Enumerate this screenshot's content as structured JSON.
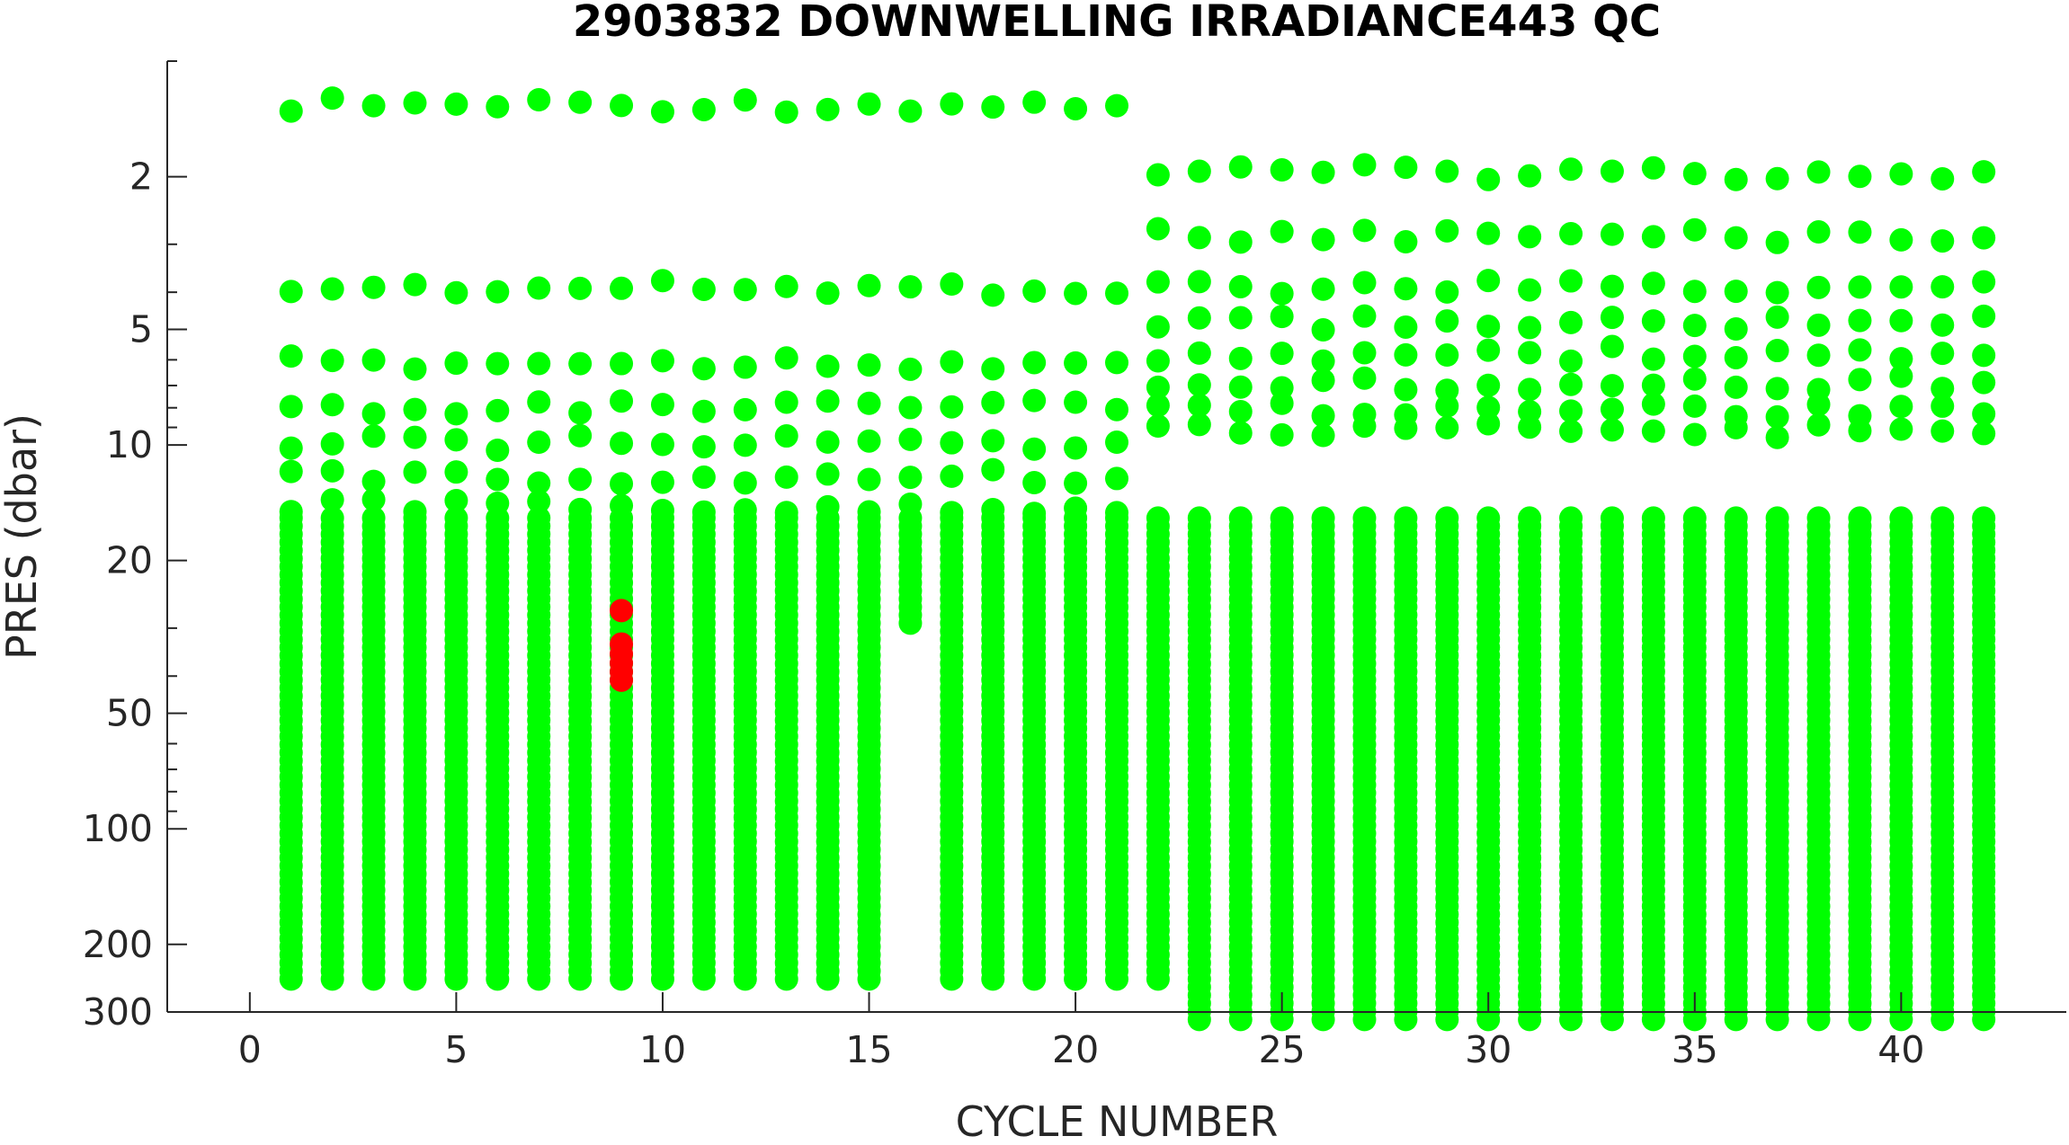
{
  "chart_data": {
    "type": "scatter",
    "title": "2903832  DOWNWELLING IRRADIANCE443 QC",
    "xlabel": "CYCLE NUMBER",
    "ylabel": "PRES (dbar)",
    "xlim": [
      -2,
      44
    ],
    "ylim": [
      300,
      1
    ],
    "yscale": "log",
    "y_reversed": true,
    "grid": false,
    "legend": "none",
    "x_ticks": [
      0,
      5,
      10,
      15,
      20,
      25,
      30,
      35,
      40
    ],
    "x_tick_labels": [
      "0",
      "5",
      "10",
      "15",
      "20",
      "25",
      "30",
      "35",
      "40"
    ],
    "y_ticks": [
      2,
      5,
      10,
      20,
      50,
      100,
      200,
      300
    ],
    "y_tick_labels": [
      "2",
      "5",
      "10",
      "20",
      "50",
      "100",
      "200",
      "300"
    ],
    "colors": {
      "good": "#00ff00",
      "flagged": "#ff0000",
      "axis": "#262626",
      "background": "#ffffff"
    },
    "profile_shape": {
      "shallow_levels": [
        1.3,
        3.9,
        6.1,
        8.0,
        9.9,
        12.1,
        14.5
      ],
      "dense_start": 15.5,
      "short_profile_max": 250,
      "long_profile_max": 400,
      "long_cycles_from": 23,
      "truncated_cycles": [
        {
          "cycle": 16,
          "max": 30
        }
      ]
    },
    "series": [
      {
        "flag": "1",
        "color": "#00ff00",
        "cycles": "1-42",
        "p_min": 1.3,
        "p_max": 400
      },
      {
        "flag": "4",
        "color": "#ff0000",
        "cycles": [
          9
        ],
        "pressures": [
          27,
          33,
          35,
          37,
          39,
          41
        ]
      }
    ]
  }
}
